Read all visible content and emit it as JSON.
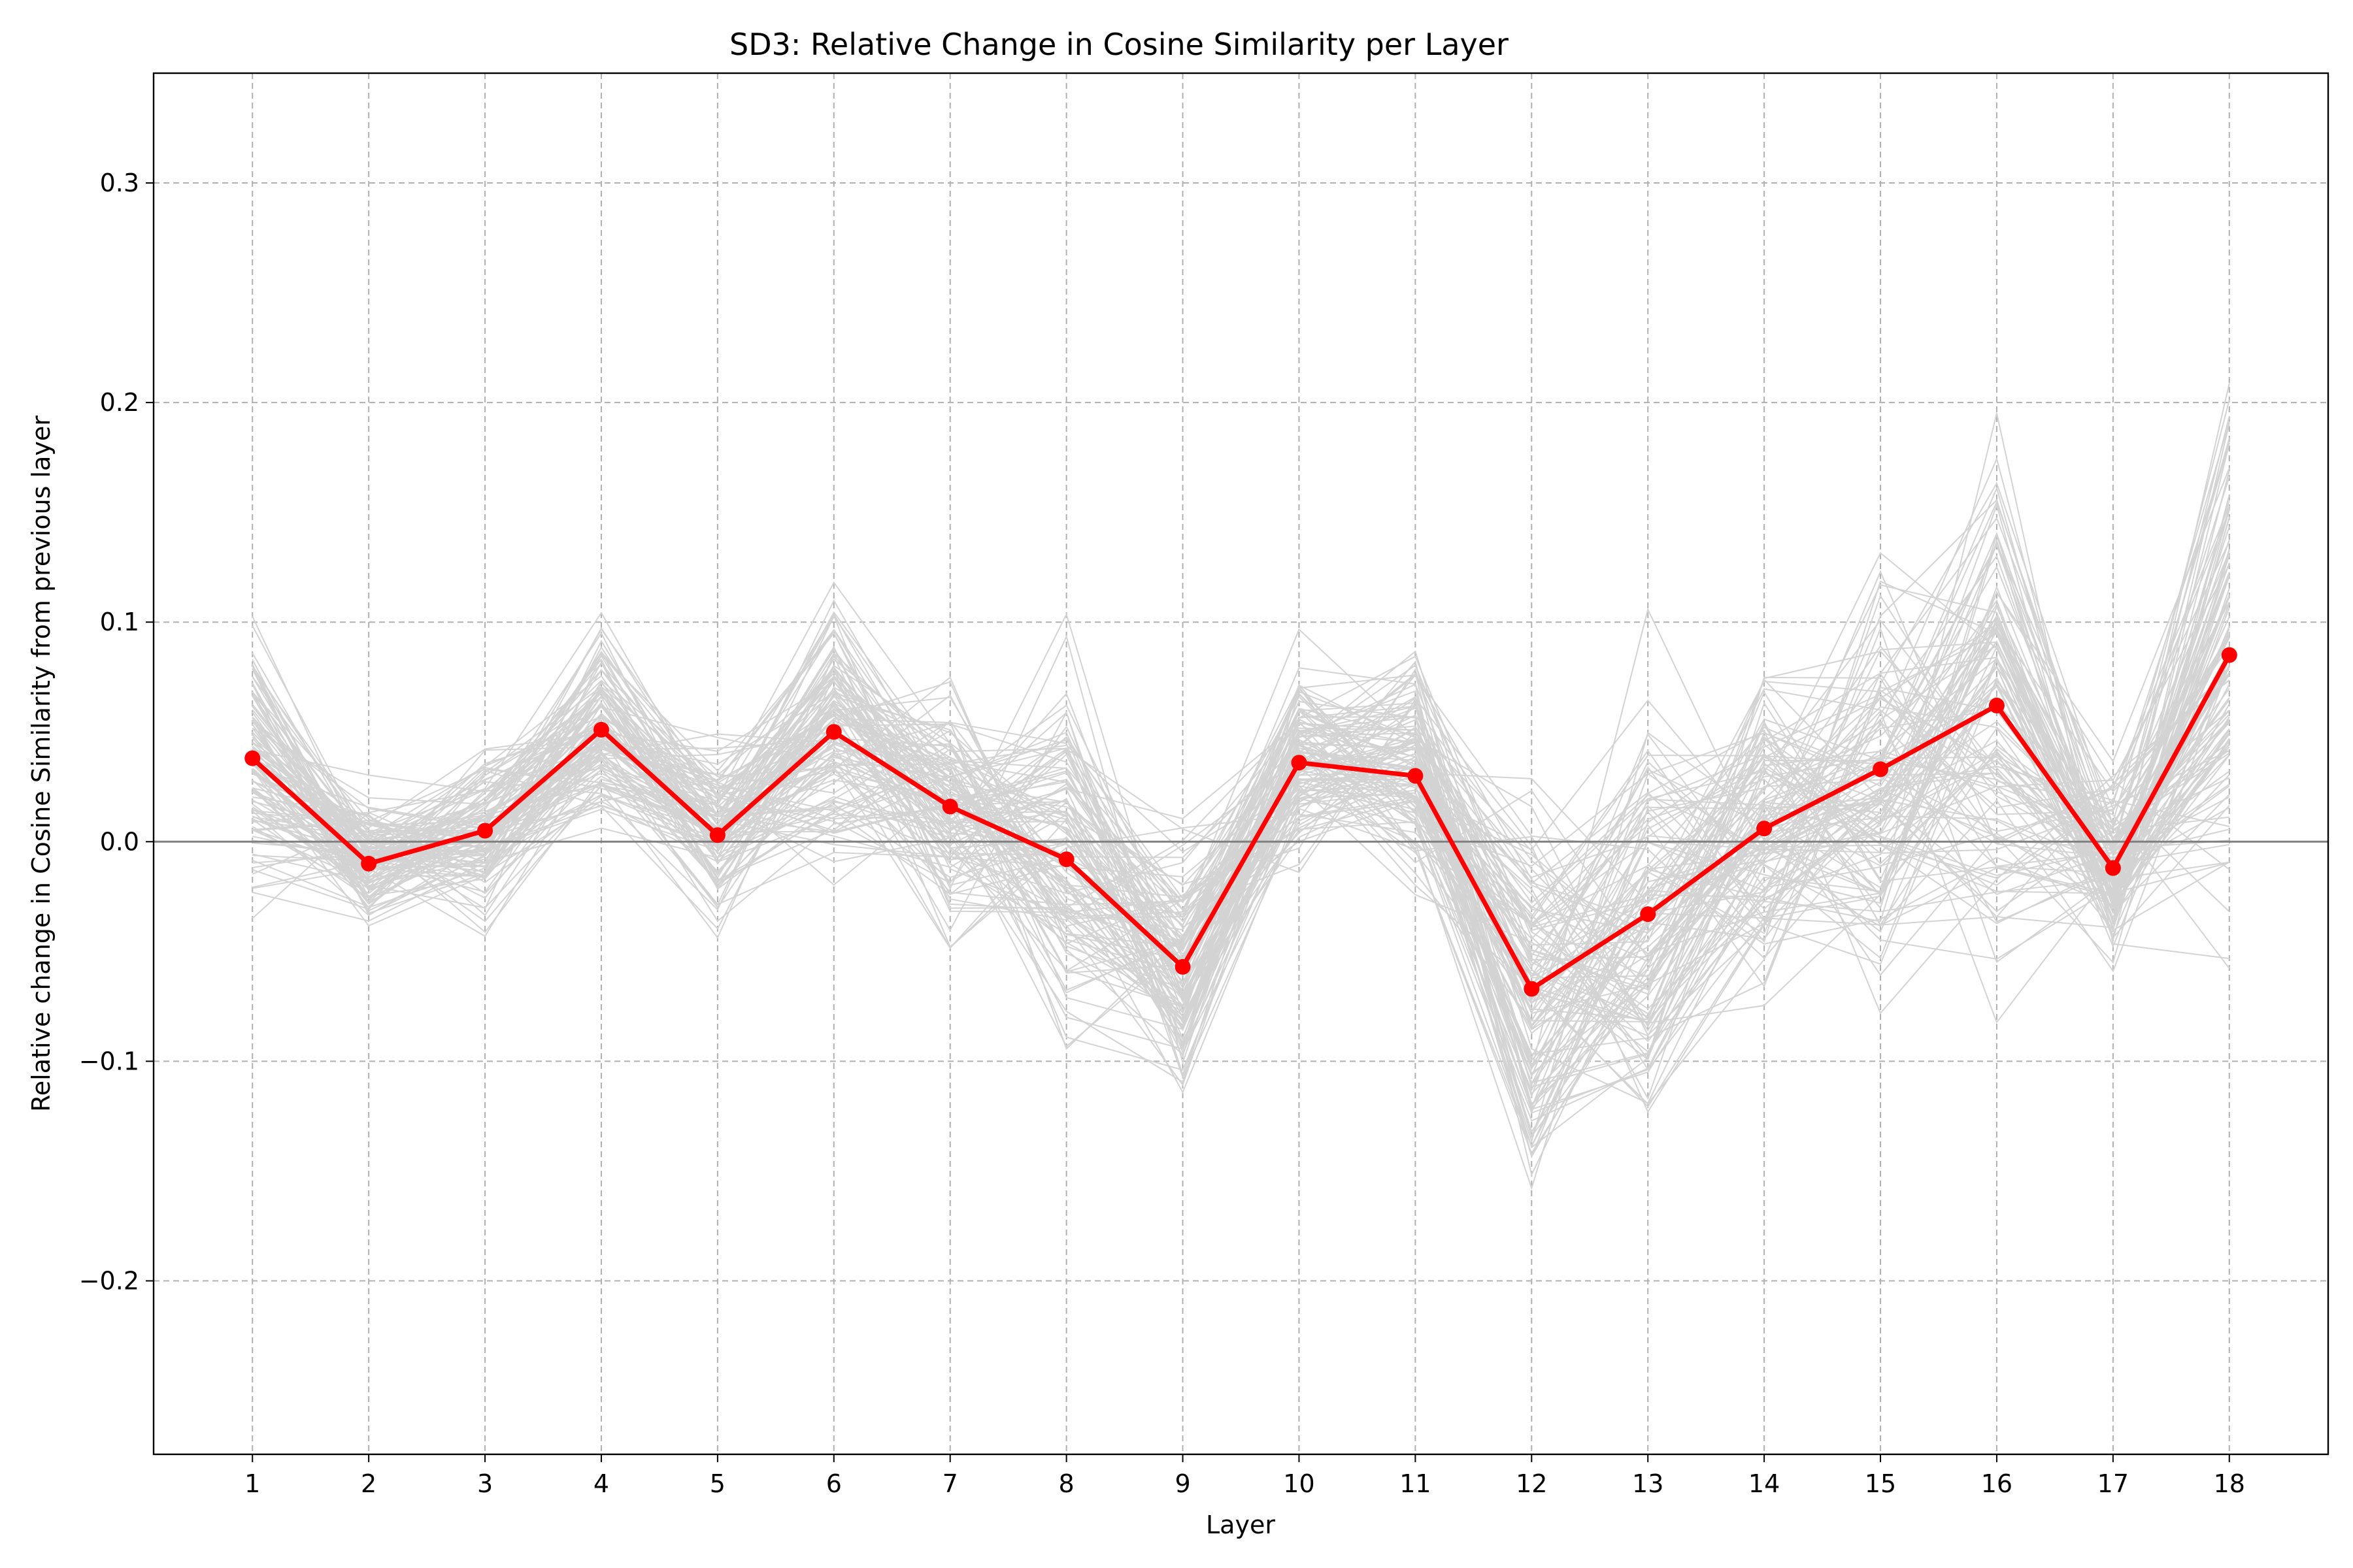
{
  "chart_data": {
    "type": "line",
    "title": "SD3: Relative Change in Cosine Similarity per Layer",
    "xlabel": "Layer",
    "ylabel": "Relative change in Cosine Similarity from previous layer",
    "x": [
      1,
      2,
      3,
      4,
      5,
      6,
      7,
      8,
      9,
      10,
      11,
      12,
      13,
      14,
      15,
      16,
      17,
      18
    ],
    "xlim": [
      0.15,
      18.85
    ],
    "ylim": [
      -0.279,
      0.35
    ],
    "yticks": [
      -0.2,
      -0.1,
      0.0,
      0.1,
      0.2,
      0.3
    ],
    "ytick_labels": [
      "−0.2",
      "−0.1",
      "0.0",
      "0.1",
      "0.2",
      "0.3"
    ],
    "grid": true,
    "zero_line": 0.0,
    "series": [
      {
        "values": [
          0.038,
          -0.01,
          0.005,
          0.051,
          0.003,
          0.05,
          0.016,
          -0.008,
          -0.057,
          0.036,
          0.03,
          -0.067,
          -0.033,
          0.006,
          0.033,
          0.062,
          -0.012,
          0.085
        ]
      }
    ],
    "background_trace_count": 120,
    "background_trace_spread": [
      0.03,
      0.014,
      0.018,
      0.022,
      0.018,
      0.028,
      0.026,
      0.04,
      0.03,
      0.025,
      0.028,
      0.04,
      0.05,
      0.035,
      0.045,
      0.06,
      0.02,
      0.055
    ],
    "colors": {
      "mean_line": "#ff0000",
      "background_traces": "#d3d3d3",
      "grid": "#b0b0b0",
      "zero_line": "#808080"
    }
  }
}
